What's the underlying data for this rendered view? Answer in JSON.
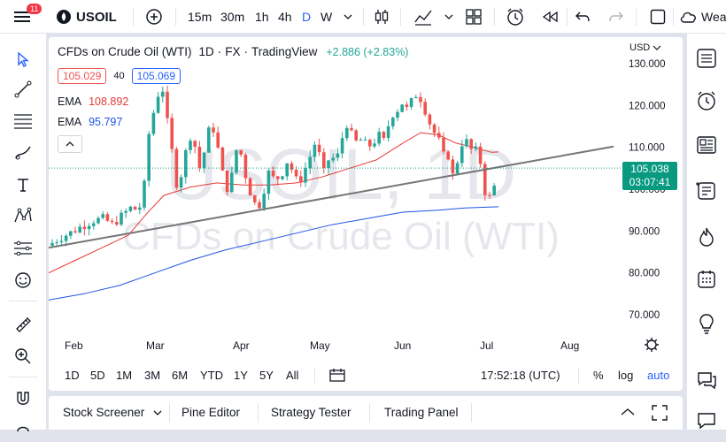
{
  "topbar": {
    "notifications": "11",
    "symbol": "USOIL",
    "intervals": [
      "15m",
      "30m",
      "1h",
      "4h",
      "D",
      "W"
    ],
    "active_interval": "D",
    "more_label": "Wea"
  },
  "legend": {
    "title": "CFDs on Crude Oil (WTI)",
    "interval": "1D",
    "exchange": "FX",
    "source": "TradingView",
    "change": "+2.886 (+2.83%)",
    "bid": "105.029",
    "spread": "40",
    "ask": "105.069",
    "ema1_label": "EMA",
    "ema1_value": "108.892",
    "ema2_label": "EMA",
    "ema2_value": "95.797"
  },
  "watermark": {
    "symbol": "USOIL, 1D",
    "name": "CFDs on Crude Oil (WTI)"
  },
  "price_axis": {
    "currency": "USD",
    "current_price": "105.038",
    "countdown": "03:07:41"
  },
  "chart_data": {
    "type": "candlestick",
    "y_ticks": [
      "130.000",
      "120.000",
      "110.000",
      "100.000",
      "90.000",
      "80.000",
      "70.000"
    ],
    "x_ticks": [
      "Feb",
      "Mar",
      "Apr",
      "May",
      "Jun",
      "Jul",
      "Aug"
    ],
    "ylim": [
      65,
      132
    ],
    "last_price": 105.038,
    "series": [
      {
        "name": "EMA",
        "value": 108.892,
        "color": "#e53935"
      },
      {
        "name": "EMA",
        "value": 95.797,
        "color": "#1e53e5"
      }
    ],
    "colors": {
      "up": "#26a69a",
      "down": "#ef5350",
      "trendline": "#757575"
    }
  },
  "rangebar": {
    "ranges": [
      "1D",
      "5D",
      "1M",
      "3M",
      "6M",
      "YTD",
      "1Y",
      "5Y",
      "All"
    ],
    "time": "17:52:18 (UTC)",
    "percent": "%",
    "log": "log",
    "auto": "auto"
  },
  "bottombar": {
    "tabs": [
      "Stock Screener",
      "Pine Editor",
      "Strategy Tester",
      "Trading Panel"
    ]
  }
}
